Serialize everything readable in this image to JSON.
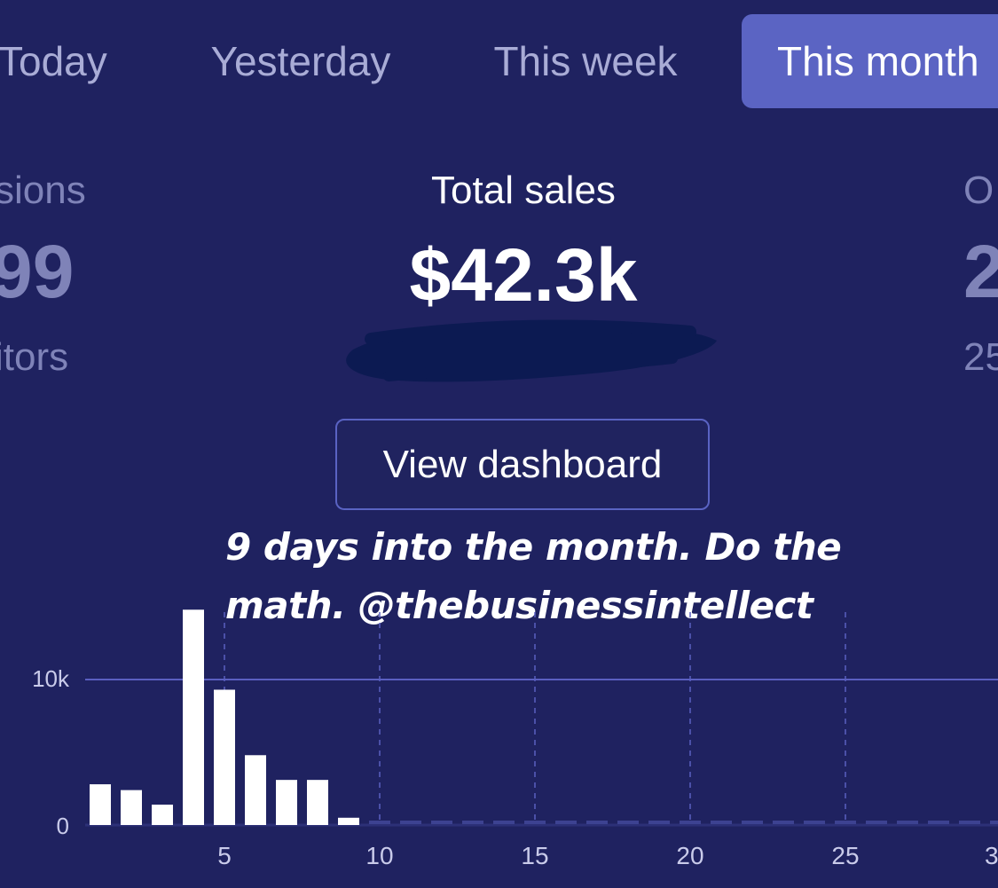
{
  "tabs": [
    {
      "label": "Today",
      "active": false
    },
    {
      "label": "Yesterday",
      "active": false
    },
    {
      "label": "This week",
      "active": false
    },
    {
      "label": "This month",
      "active": true
    }
  ],
  "metrics": {
    "left": {
      "label_partial": "sions",
      "value_partial": "99",
      "sub_partial": "itors"
    },
    "center": {
      "label": "Total sales",
      "value": "$42.3k"
    },
    "right": {
      "label_partial": "O",
      "value_partial": "2",
      "sub_partial": "25"
    }
  },
  "view_dashboard_label": "View dashboard",
  "overlay_caption": "9 days into the month. Do the\nmath. @thebusinessintellect",
  "colors": {
    "background": "#1f2260",
    "active_tab": "#5b64c3",
    "button_border": "#5a63c3",
    "bar": "#ffffff",
    "gridline": "#5a5fc0",
    "redaction": "#0c1a52"
  },
  "chart_data": {
    "type": "bar",
    "x": [
      1,
      2,
      3,
      4,
      5,
      6,
      7,
      8,
      9
    ],
    "values": [
      2800,
      2400,
      1400,
      14800,
      9300,
      4800,
      3100,
      3100,
      500
    ],
    "x_ticks": [
      "5",
      "10",
      "15",
      "20",
      "25",
      "3"
    ],
    "y_ticks": [
      "0",
      "10k"
    ],
    "xlim": [
      0,
      30
    ],
    "ylim": [
      0,
      15000
    ],
    "grid": true
  }
}
